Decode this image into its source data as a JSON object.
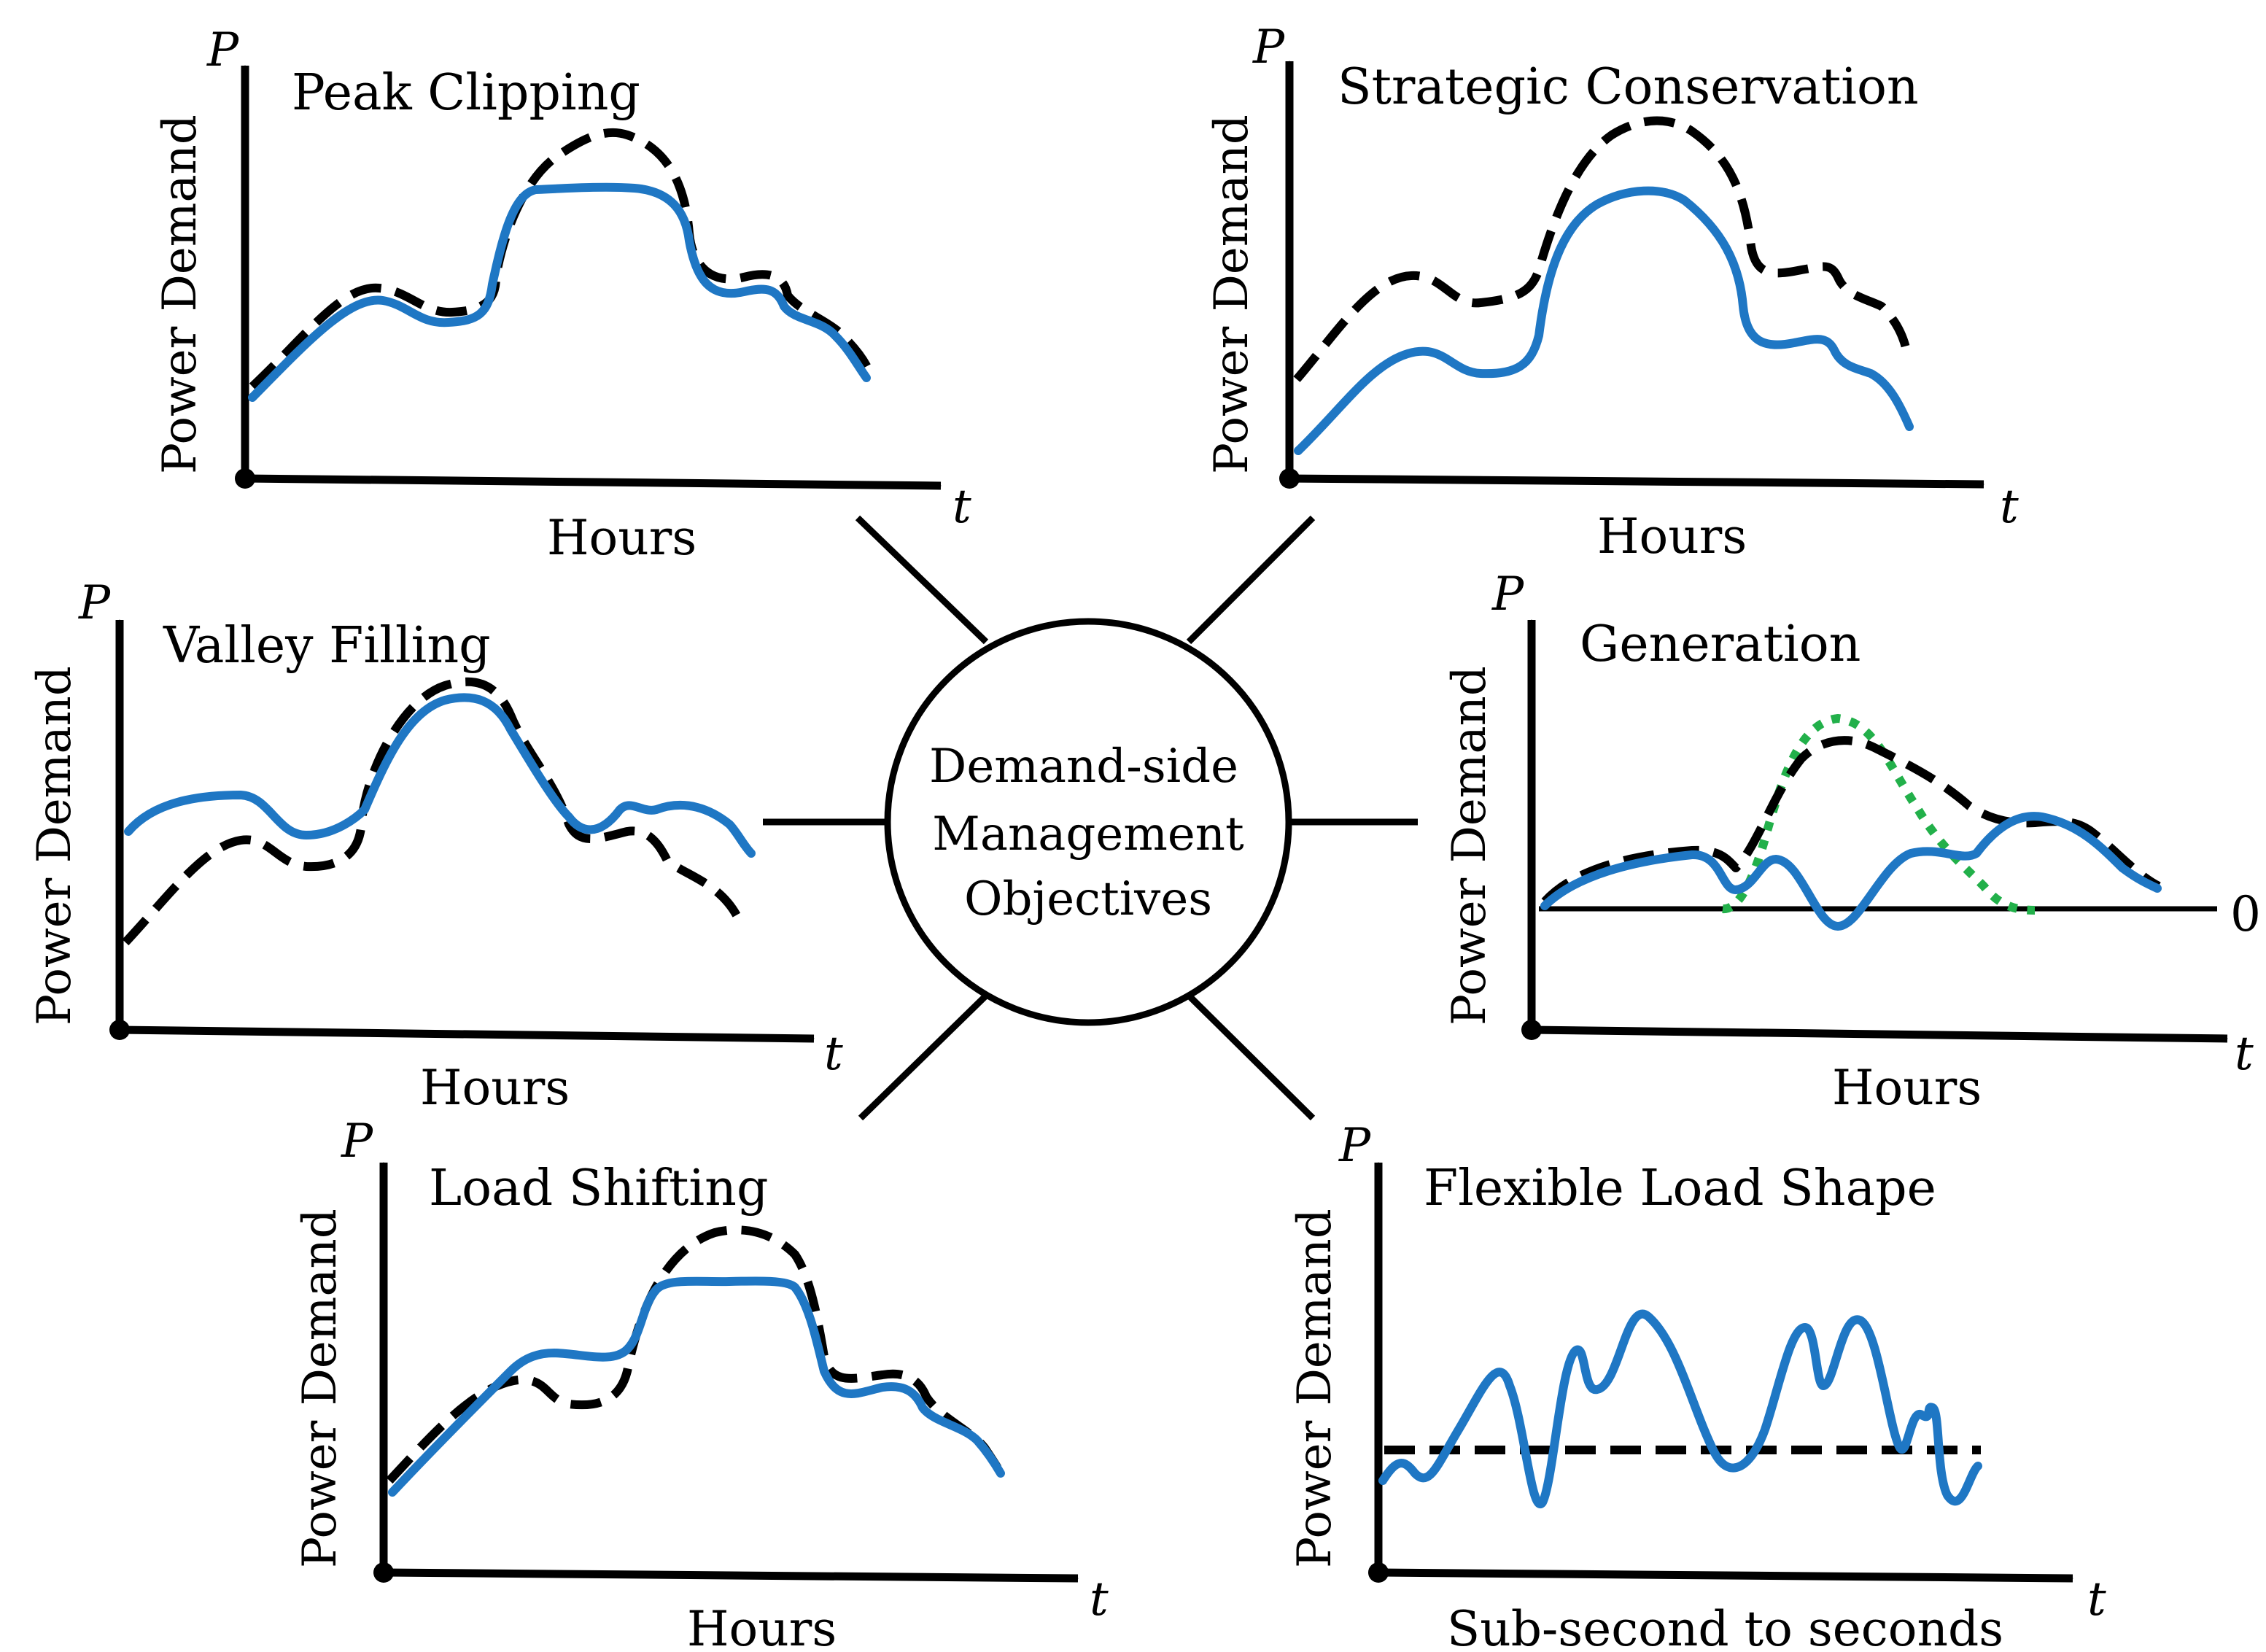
{
  "center": {
    "lines": [
      "Demand-side",
      "Management",
      "Objectives"
    ]
  },
  "panels": {
    "peak_clipping": {
      "title": "Peak Clipping",
      "ylabel": "Power Demand",
      "xlabel": "Hours",
      "y_symbol": "P",
      "x_symbol": "t"
    },
    "strategic_conservation": {
      "title": "Strategic Conservation",
      "ylabel": "Power Demand",
      "xlabel": "Hours",
      "y_symbol": "P",
      "x_symbol": "t"
    },
    "valley_filling": {
      "title": "Valley Filling",
      "ylabel": "Power Demand",
      "xlabel": "Hours",
      "y_symbol": "P",
      "x_symbol": "t"
    },
    "generation": {
      "title": "Generation",
      "ylabel": "Power Demand",
      "xlabel": "Hours",
      "y_symbol": "P",
      "x_symbol": "t",
      "zero_label": "0"
    },
    "load_shifting": {
      "title": "Load Shifting",
      "ylabel": "Power Demand",
      "xlabel": "Hours",
      "y_symbol": "P",
      "x_symbol": "t"
    },
    "flexible_load_shape": {
      "title": "Flexible Load Shape",
      "ylabel": "Power Demand",
      "xlabel": "Sub-second to seconds",
      "y_symbol": "P",
      "x_symbol": "t"
    }
  },
  "colors": {
    "original_curve": "#000000",
    "modified_curve": "#1f77c4",
    "generation_curve": "#22b04a"
  }
}
